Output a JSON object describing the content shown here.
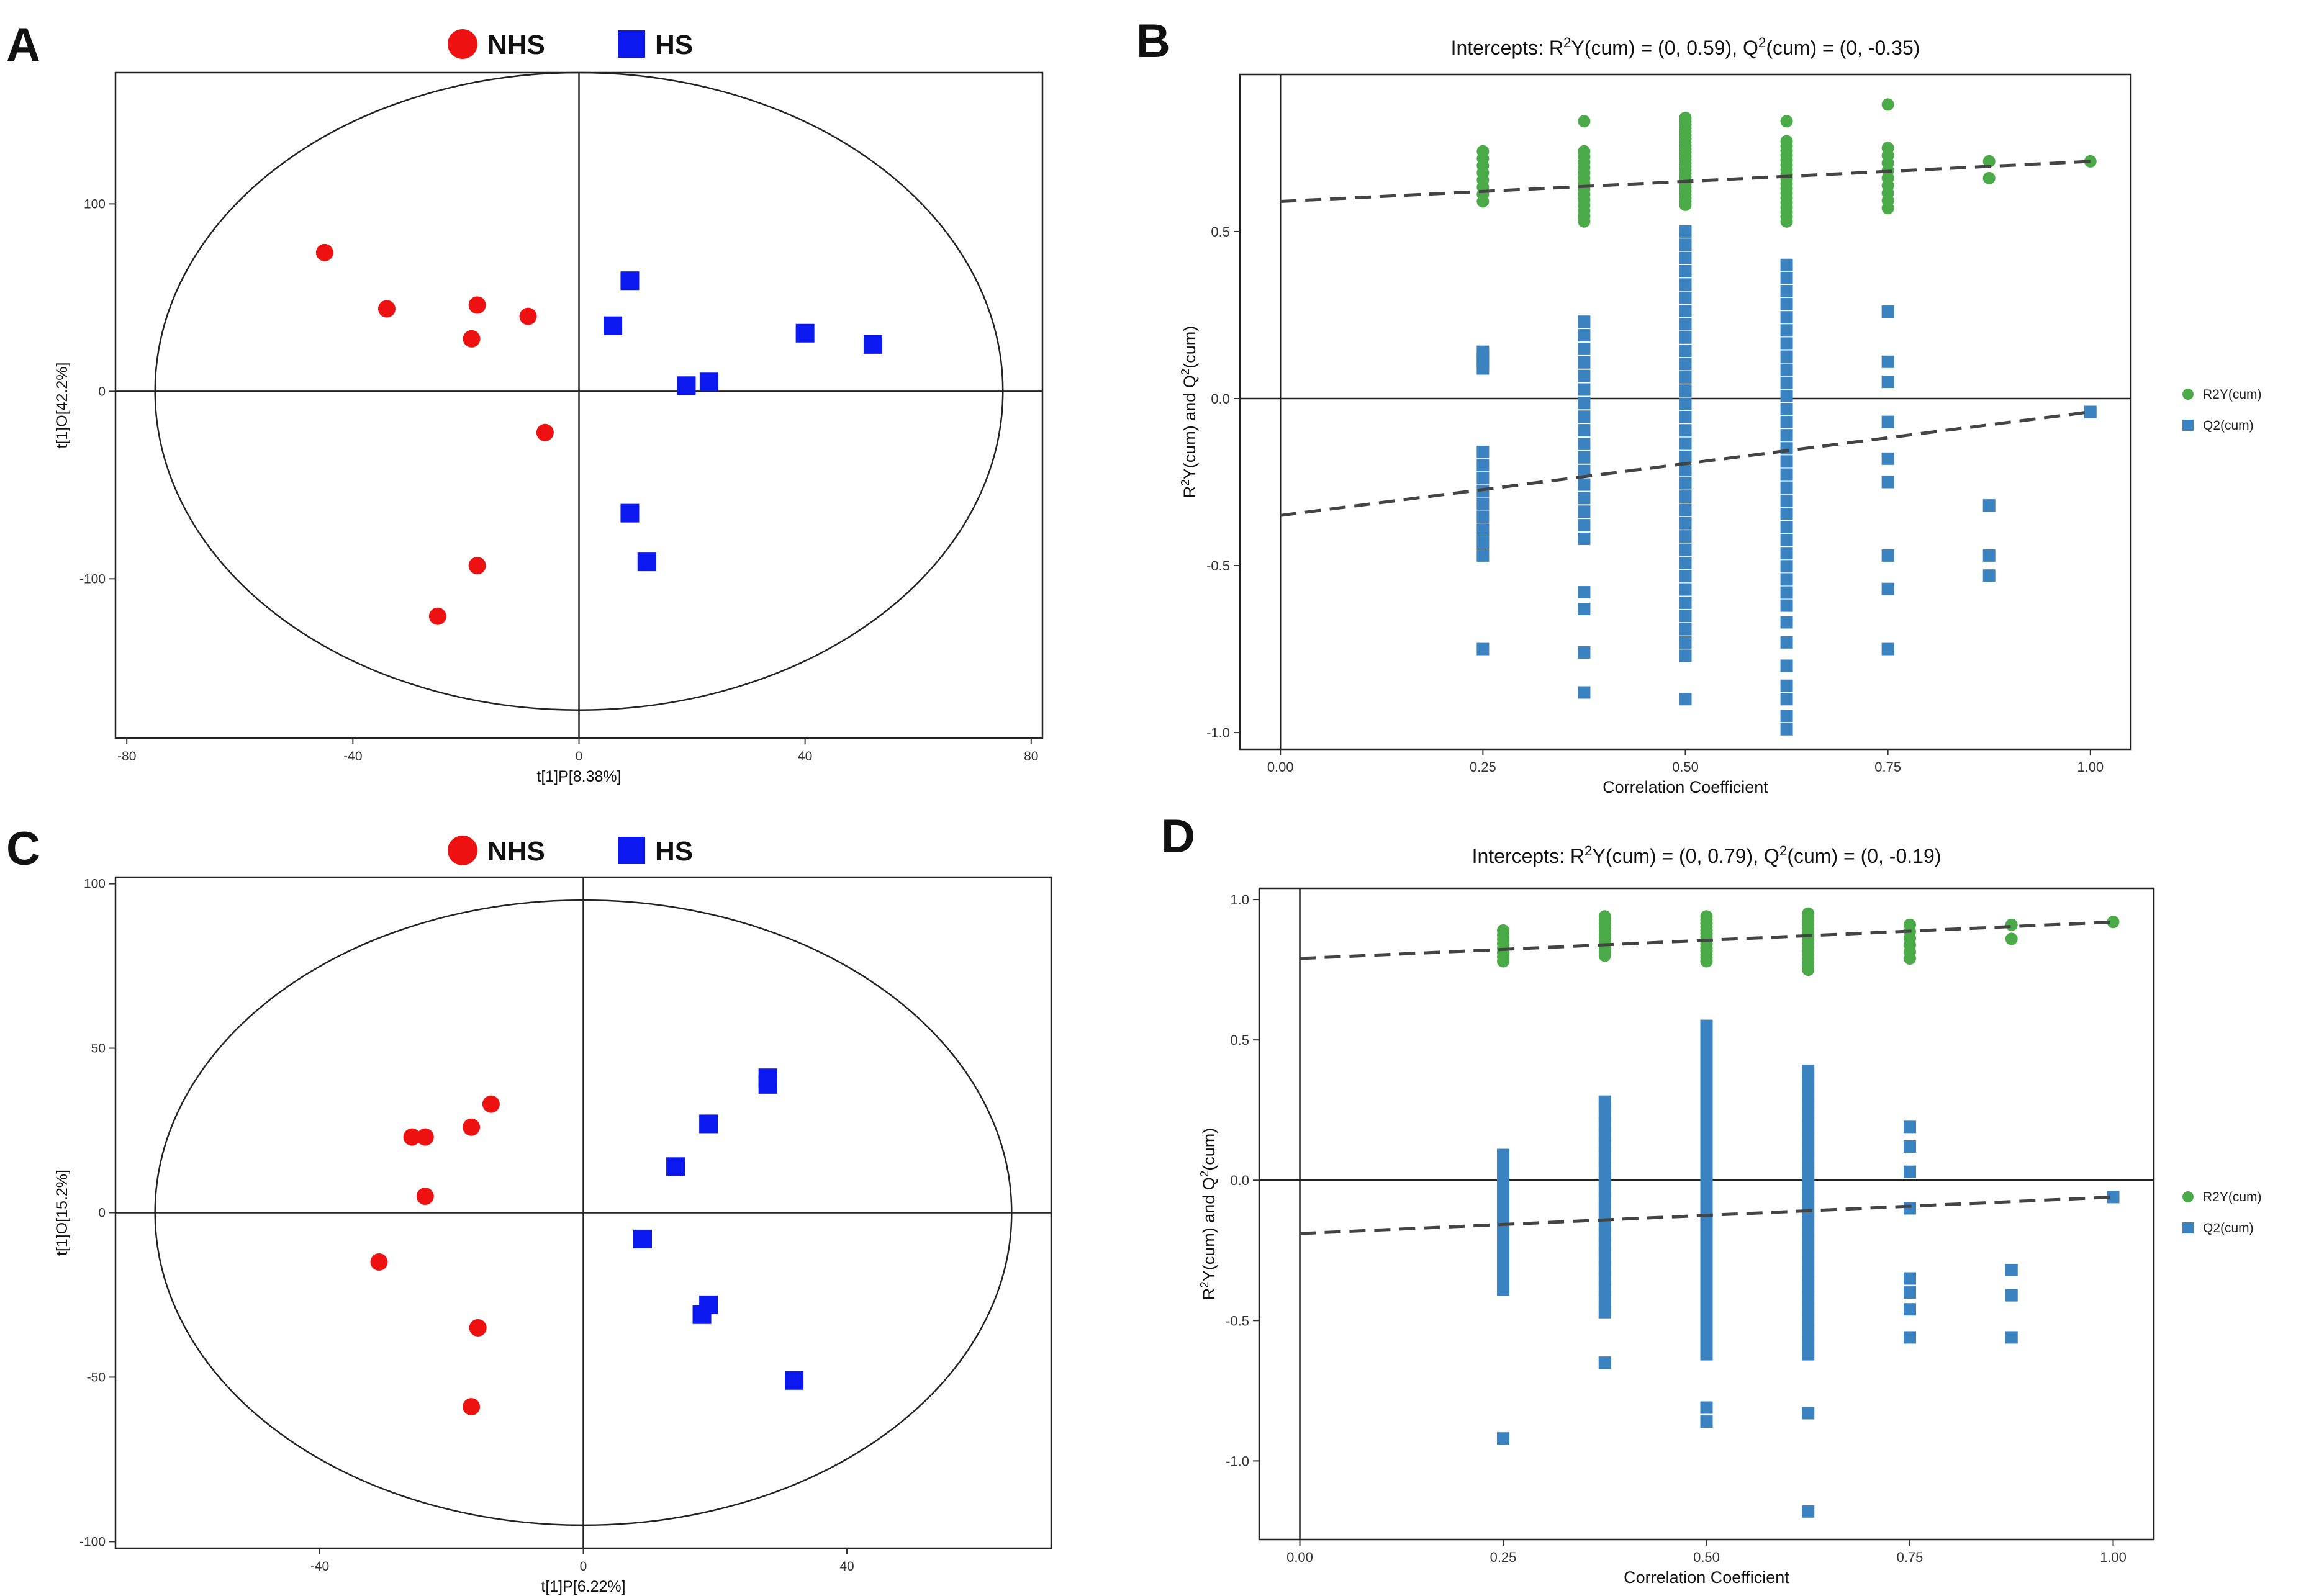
{
  "figure": {
    "panels": [
      "A",
      "B",
      "C",
      "D"
    ]
  },
  "colors": {
    "nhs": "#ee1111",
    "hs": "#0b19f0",
    "r2y": "#4aaa47",
    "q2": "#3a82c0",
    "dash": "#444444"
  },
  "chart_data": [
    {
      "panel": "A",
      "type": "scatter",
      "legend": [
        "NHS",
        "HS"
      ],
      "xlabel": "t[1]P[8.38%]",
      "ylabel": "t[1]O[42.2%]",
      "xlim": [
        -82,
        82
      ],
      "ylim": [
        -185,
        170
      ],
      "xticks": [
        -80,
        -40,
        0,
        40,
        80
      ],
      "yticks": [
        -100,
        0,
        100
      ],
      "ellipse": {
        "rx": 75,
        "ry": 170
      },
      "series": [
        {
          "name": "NHS",
          "points": [
            [
              -45,
              74
            ],
            [
              -34,
              44
            ],
            [
              -18,
              46
            ],
            [
              -19,
              28
            ],
            [
              -9,
              40
            ],
            [
              -6,
              -22
            ],
            [
              -18,
              -93
            ],
            [
              -25,
              -120
            ]
          ]
        },
        {
          "name": "HS",
          "points": [
            [
              9,
              59
            ],
            [
              6,
              35
            ],
            [
              19,
              3
            ],
            [
              23,
              5
            ],
            [
              40,
              31
            ],
            [
              52,
              25
            ],
            [
              9,
              -65
            ],
            [
              12,
              -91
            ]
          ]
        }
      ]
    },
    {
      "panel": "B",
      "type": "scatter",
      "title": "Intercepts: R²Y(cum) = (0, 0.59), Q²(cum) = (0, -0.35)",
      "xlabel": "Correlation Coefficient",
      "ylabel": "R²Y(cum) and Q²(cum)",
      "xlim": [
        -0.05,
        1.05
      ],
      "ylim": [
        -1.05,
        0.97
      ],
      "xticks": [
        "0.00",
        "0.25",
        "0.50",
        "0.75",
        "1.00"
      ],
      "yticks": [
        "-1.0",
        "-0.5",
        "0.0",
        "0.5"
      ],
      "legend": [
        "R2Y(cum)",
        "Q2(cum)"
      ],
      "regression": {
        "R2Y(cum)": {
          "x": [
            0,
            1
          ],
          "y": [
            0.59,
            0.71
          ]
        },
        "Q2(cum)": {
          "x": [
            0,
            1
          ],
          "y": [
            -0.35,
            -0.04
          ]
        }
      },
      "series": [
        {
          "name": "R2Y(cum)",
          "groups": [
            {
              "x": 0.25,
              "min": 0.59,
              "max": 0.74,
              "n": 8
            },
            {
              "x": 0.375,
              "min": 0.53,
              "max": 0.74,
              "n": 14,
              "extra": [
                0.83
              ]
            },
            {
              "x": 0.5,
              "min": 0.58,
              "max": 0.84,
              "n": 26
            },
            {
              "x": 0.625,
              "min": 0.53,
              "max": 0.77,
              "n": 18,
              "extra": [
                0.83
              ]
            },
            {
              "x": 0.75,
              "min": 0.57,
              "max": 0.75,
              "n": 9,
              "extra": [
                0.88
              ]
            },
            {
              "x": 0.875,
              "points": [
                0.66,
                0.71
              ]
            },
            {
              "x": 1.0,
              "points": [
                0.71
              ]
            }
          ]
        },
        {
          "name": "Q2(cum)",
          "groups": [
            {
              "x": 0.25,
              "ranges": [
                [
                  0.09,
                  0.14
                ],
                [
                  -0.47,
                  -0.16
                ]
              ],
              "extra": [
                -0.75
              ]
            },
            {
              "x": 0.375,
              "ranges": [
                [
                  -0.42,
                  0.23
                ]
              ],
              "extra": [
                -0.58,
                -0.63,
                -0.76,
                -0.88
              ]
            },
            {
              "x": 0.5,
              "ranges": [
                [
                  -0.77,
                  0.5
                ]
              ],
              "extra": [
                -0.9
              ]
            },
            {
              "x": 0.625,
              "ranges": [
                [
                  -0.62,
                  0.4
                ]
              ],
              "extra": [
                -0.67,
                -0.73,
                -0.8,
                -0.86,
                -0.9,
                -0.95,
                -0.99
              ]
            },
            {
              "x": 0.75,
              "points": [
                0.26,
                0.11,
                0.05,
                -0.07,
                -0.18,
                -0.25,
                -0.47,
                -0.57,
                -0.75
              ]
            },
            {
              "x": 0.875,
              "points": [
                -0.32,
                -0.47,
                -0.53
              ]
            },
            {
              "x": 1.0,
              "points": [
                -0.04
              ]
            }
          ]
        }
      ]
    },
    {
      "panel": "C",
      "type": "scatter",
      "legend": [
        "NHS",
        "HS"
      ],
      "xlabel": "t[1]P[6.22%]",
      "ylabel": "t[1]O[15.2%]",
      "xlim": [
        -71,
        71
      ],
      "ylim": [
        -102,
        102
      ],
      "xticks": [
        -40,
        0,
        40
      ],
      "yticks": [
        -100,
        -50,
        0,
        50,
        100
      ],
      "ellipse": {
        "rx": 65,
        "ry": 95
      },
      "series": [
        {
          "name": "NHS",
          "points": [
            [
              -26,
              23
            ],
            [
              -24,
              23
            ],
            [
              -17,
              26
            ],
            [
              -14,
              33
            ],
            [
              -24,
              5
            ],
            [
              -31,
              -15
            ],
            [
              -16,
              -35
            ],
            [
              -17,
              -59
            ]
          ]
        },
        {
          "name": "HS",
          "points": [
            [
              28,
              41
            ],
            [
              28,
              39
            ],
            [
              19,
              27
            ],
            [
              14,
              14
            ],
            [
              9,
              -8
            ],
            [
              19,
              -28
            ],
            [
              18,
              -31
            ],
            [
              32,
              -51
            ]
          ]
        }
      ]
    },
    {
      "panel": "D",
      "type": "scatter",
      "title": "Intercepts: R²Y(cum) = (0, 0.79), Q²(cum) = (0, -0.19)",
      "xlabel": "Correlation Coefficient",
      "ylabel": "R²Y(cum) and Q²(cum)",
      "xlim": [
        -0.05,
        1.05
      ],
      "ylim": [
        -1.28,
        1.04
      ],
      "xticks": [
        "0.00",
        "0.25",
        "0.50",
        "0.75",
        "1.00"
      ],
      "yticks": [
        "-1.0",
        "-0.5",
        "0.0",
        "0.5",
        "1.0"
      ],
      "legend": [
        "R2Y(cum)",
        "Q2(cum)"
      ],
      "regression": {
        "R2Y(cum)": {
          "x": [
            0,
            1
          ],
          "y": [
            0.79,
            0.92
          ]
        },
        "Q2(cum)": {
          "x": [
            0,
            1
          ],
          "y": [
            -0.19,
            -0.06
          ]
        }
      },
      "series": [
        {
          "name": "R2Y(cum)",
          "groups": [
            {
              "x": 0.25,
              "min": 0.78,
              "max": 0.89,
              "n": 8
            },
            {
              "x": 0.375,
              "min": 0.8,
              "max": 0.94,
              "n": 12
            },
            {
              "x": 0.5,
              "min": 0.78,
              "max": 0.94,
              "n": 14
            },
            {
              "x": 0.625,
              "min": 0.75,
              "max": 0.95,
              "n": 16
            },
            {
              "x": 0.75,
              "min": 0.79,
              "max": 0.91,
              "n": 6
            },
            {
              "x": 0.875,
              "points": [
                0.86,
                0.91
              ]
            },
            {
              "x": 1.0,
              "points": [
                0.92
              ]
            }
          ]
        },
        {
          "name": "Q2(cum)",
          "groups": [
            {
              "x": 0.25,
              "ranges": [
                [
                  -0.39,
                  0.09
                ]
              ],
              "extra": [
                -0.92
              ]
            },
            {
              "x": 0.375,
              "ranges": [
                [
                  -0.47,
                  0.28
                ]
              ],
              "extra": [
                -0.65
              ]
            },
            {
              "x": 0.5,
              "ranges": [
                [
                  -0.62,
                  0.55
                ]
              ],
              "extra": [
                -0.81,
                -0.86
              ]
            },
            {
              "x": 0.625,
              "ranges": [
                [
                  -0.62,
                  0.39
                ]
              ],
              "extra": [
                -0.83,
                -1.18
              ]
            },
            {
              "x": 0.75,
              "points": [
                0.19,
                0.12,
                0.03,
                -0.1,
                -0.35,
                -0.4,
                -0.46,
                -0.56
              ]
            },
            {
              "x": 0.875,
              "points": [
                -0.32,
                -0.41,
                -0.56
              ]
            },
            {
              "x": 1.0,
              "points": [
                -0.06
              ]
            }
          ]
        }
      ]
    }
  ]
}
